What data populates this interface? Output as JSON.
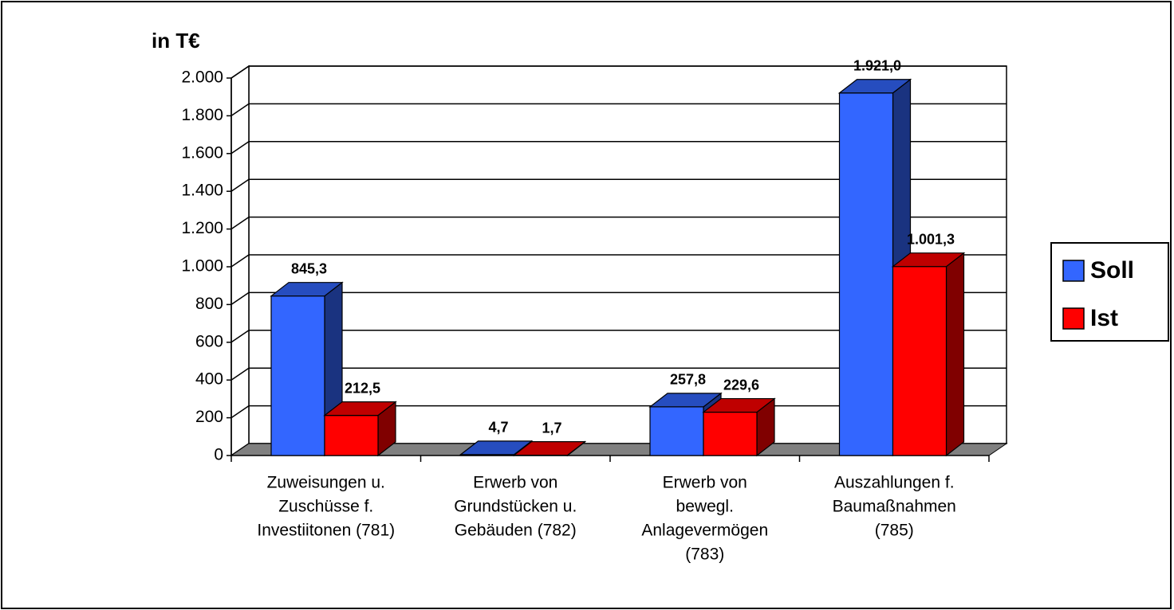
{
  "chart_data": {
    "type": "bar3d",
    "y_label": "in T€",
    "categories": [
      [
        "Zuweisungen u.",
        "Zuschüsse f.",
        "Investiitonen (781)"
      ],
      [
        "Erwerb von",
        "Grundstücken u.",
        "Gebäuden (782)"
      ],
      [
        "Erwerb von",
        "bewegl.",
        "Anlagevermögen",
        "(783)"
      ],
      [
        "Auszahlungen f.",
        "Baumaßnahmen",
        "(785)"
      ]
    ],
    "series": [
      {
        "name": "Soll",
        "color": "#3366ff",
        "values": [
          845.3,
          4.7,
          257.8,
          1921.0
        ],
        "value_labels": [
          "845,3",
          "4,7",
          "257,8",
          "1.921,0"
        ]
      },
      {
        "name": "Ist",
        "color": "#ff0000",
        "values": [
          212.5,
          1.7,
          229.6,
          1001.3
        ],
        "value_labels": [
          "212,5",
          "1,7",
          "229,6",
          "1.001,3"
        ]
      }
    ],
    "ylim": [
      0,
      2000
    ],
    "yticks": [
      0,
      200,
      400,
      600,
      800,
      {
        "value": 1000,
        "label": "1.000"
      },
      {
        "value": 1200,
        "label": "1.200"
      },
      {
        "value": 1400,
        "label": "1.400"
      },
      {
        "value": 1600,
        "label": "1.600"
      },
      {
        "value": 1800,
        "label": "1.800"
      },
      {
        "value": 2000,
        "label": "2.000"
      }
    ],
    "grid": true,
    "legend": "right"
  }
}
